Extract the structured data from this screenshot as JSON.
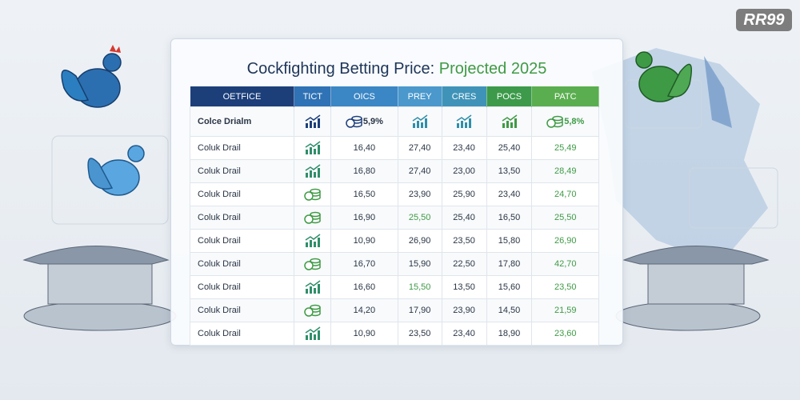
{
  "logo": "RR99",
  "title": {
    "main": "Cockfighting Betting Price:",
    "highlight": "Projected 2025"
  },
  "table": {
    "headers": [
      "OETFICE",
      "TICT",
      "OICS",
      "PREY",
      "CRES",
      "POCS",
      "PATC"
    ],
    "highlight_row": {
      "name": "Colce Drialm",
      "oics": "5,9%",
      "patc": "5,8%"
    },
    "rows": [
      {
        "name": "Coluk Drail",
        "values": [
          "16,40",
          "27,40",
          "23,40",
          "25,40",
          "25,49"
        ]
      },
      {
        "name": "Coluk Drail",
        "values": [
          "16,80",
          "27,40",
          "23,00",
          "13,50",
          "28,49"
        ]
      },
      {
        "name": "Coluk Drail",
        "values": [
          "16,50",
          "23,90",
          "25,90",
          "23,40",
          "24,70"
        ]
      },
      {
        "name": "Coluk Drail",
        "values": [
          "16,90",
          "25,50",
          "25,40",
          "16,50",
          "25,50"
        ]
      },
      {
        "name": "Coluk Drail",
        "values": [
          "10,90",
          "26,90",
          "23,50",
          "15,80",
          "26,90"
        ]
      },
      {
        "name": "Coluk Drail",
        "values": [
          "16,70",
          "15,90",
          "22,50",
          "17,80",
          "42,70"
        ]
      },
      {
        "name": "Coluk Drail",
        "values": [
          "16,60",
          "15,50",
          "13,50",
          "15,60",
          "23,50"
        ]
      },
      {
        "name": "Coluk Drail",
        "values": [
          "14,20",
          "17,90",
          "23,90",
          "14,50",
          "21,59"
        ]
      },
      {
        "name": "Coluk Drail",
        "values": [
          "10,90",
          "23,50",
          "23,40",
          "18,90",
          "23,60"
        ]
      }
    ]
  }
}
